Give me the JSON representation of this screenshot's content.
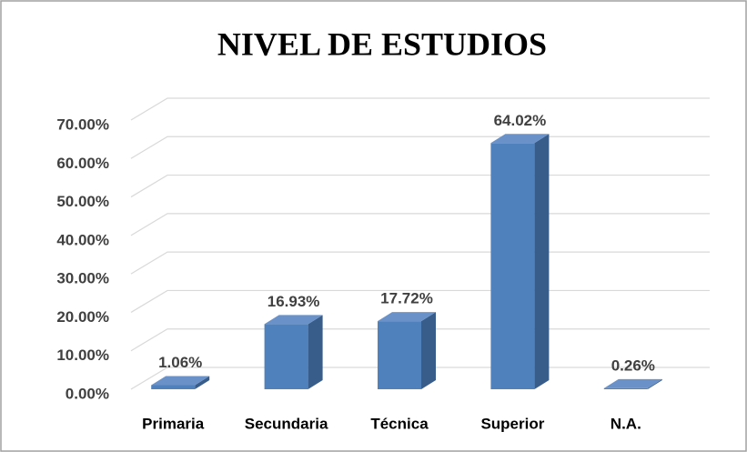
{
  "chart_data": {
    "type": "bar3d",
    "title": "NIVEL DE ESTUDIOS",
    "categories": [
      "Primaria",
      "Secundaria",
      "Técnica",
      "Superior",
      "N.A."
    ],
    "values": [
      1.06,
      16.93,
      17.72,
      64.02,
      0.26
    ],
    "value_labels": [
      "1.06%",
      "16.93%",
      "17.72%",
      "64.02%",
      "0.26%"
    ],
    "color": "#4f81bd",
    "ylim": [
      0,
      70
    ],
    "yticks": [
      {
        "value": 0,
        "label": "0.00%"
      },
      {
        "value": 10,
        "label": "10.00%"
      },
      {
        "value": 20,
        "label": "20.00%"
      },
      {
        "value": 30,
        "label": "30.00%"
      },
      {
        "value": 40,
        "label": "40.00%"
      },
      {
        "value": 50,
        "label": "50.00%"
      },
      {
        "value": 60,
        "label": "60.00%"
      },
      {
        "value": 70,
        "label": "70.00%"
      }
    ],
    "grid": true
  }
}
